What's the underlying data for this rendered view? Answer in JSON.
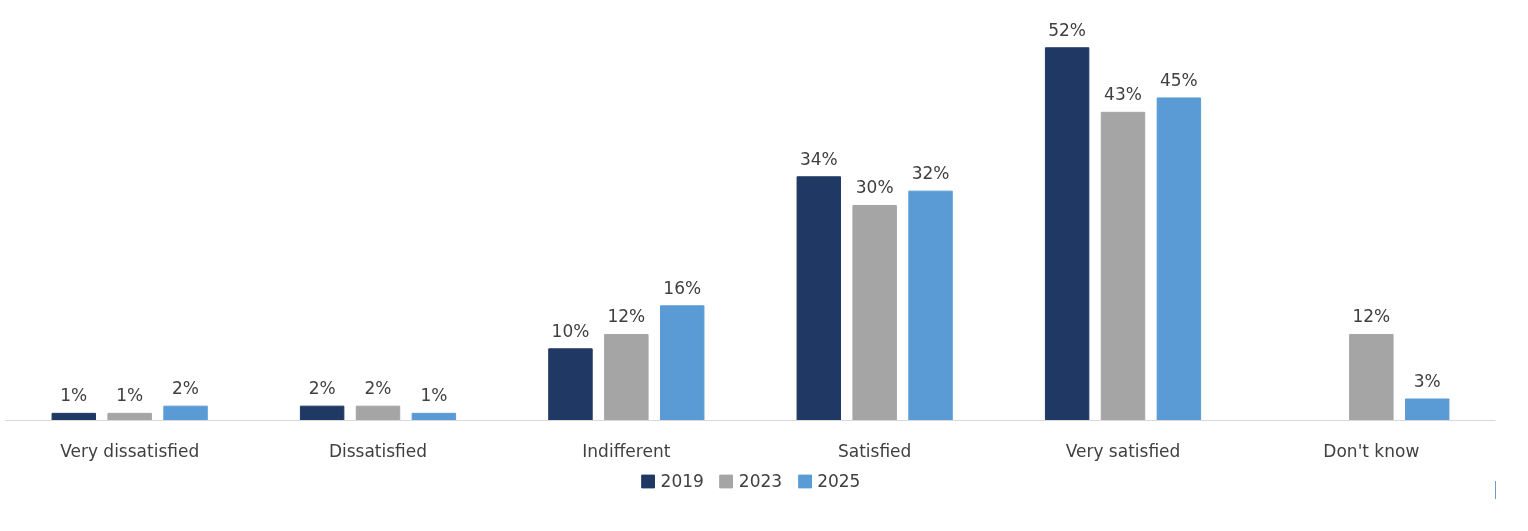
{
  "chart_data": {
    "type": "bar",
    "categories": [
      "Very dissatisfied",
      "Dissatisfied",
      "Indifferent",
      "Satisfied",
      "Very satisfied",
      "Don't know"
    ],
    "series": [
      {
        "name": "2019",
        "color": "#203864",
        "values": [
          1,
          2,
          10,
          34,
          52,
          null
        ],
        "value_labels": [
          "1%",
          "2%",
          "10%",
          "34%",
          "52%",
          null
        ]
      },
      {
        "name": "2023",
        "color": "#a5a5a5",
        "values": [
          1,
          2,
          12,
          30,
          43,
          12
        ],
        "value_labels": [
          "1%",
          "2%",
          "12%",
          "30%",
          "43%",
          "12%"
        ]
      },
      {
        "name": "2025",
        "color": "#5b9bd5",
        "values": [
          2,
          1,
          16,
          32,
          45,
          3
        ],
        "value_labels": [
          "2%",
          "1%",
          "16%",
          "32%",
          "45%",
          "3%"
        ]
      }
    ],
    "legend": "bottom",
    "grid": false
  }
}
